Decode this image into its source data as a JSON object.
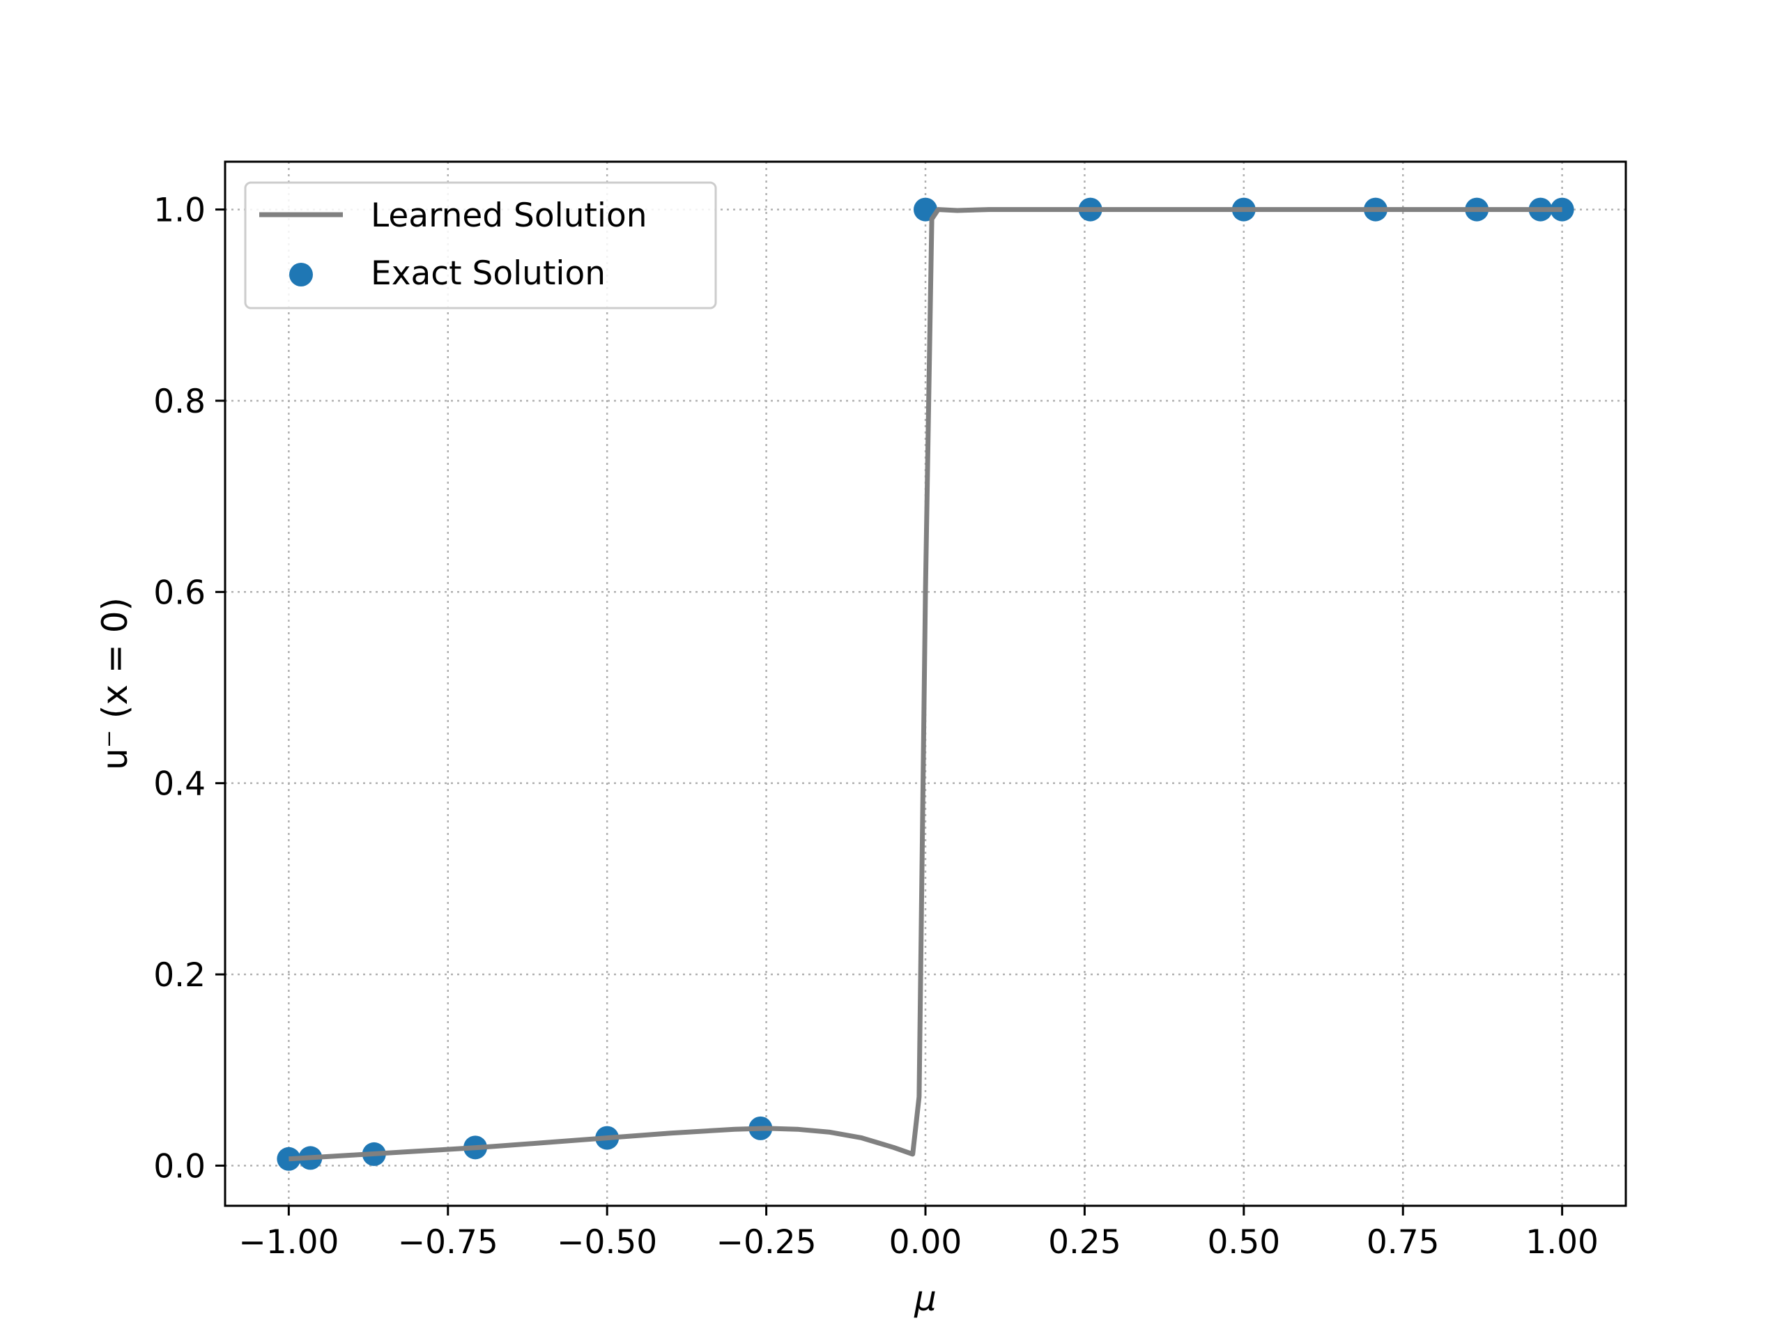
{
  "chart_data": {
    "type": "line",
    "title": "",
    "xlabel": "μ",
    "ylabel": "u⁻ (x = 0)",
    "xlim": [
      -1.1,
      1.1
    ],
    "ylim": [
      -0.042,
      1.05
    ],
    "grid": true,
    "grid_style": "dotted",
    "legend_position": "top-left",
    "x_ticks": [
      -1.0,
      -0.75,
      -0.5,
      -0.25,
      0.0,
      0.25,
      0.5,
      0.75,
      1.0
    ],
    "x_tick_labels": [
      "−1.00",
      "−0.75",
      "−0.50",
      "−0.25",
      "0.00",
      "0.25",
      "0.50",
      "0.75",
      "1.00"
    ],
    "y_ticks": [
      0.0,
      0.2,
      0.4,
      0.6,
      0.8,
      1.0
    ],
    "y_tick_labels": [
      "0.0",
      "0.2",
      "0.4",
      "0.6",
      "0.8",
      "1.0"
    ],
    "series": [
      {
        "name": "Learned Solution",
        "kind": "line",
        "color": "#808080",
        "x": [
          -1.0,
          -0.9,
          -0.8,
          -0.7,
          -0.6,
          -0.5,
          -0.4,
          -0.3,
          -0.25,
          -0.2,
          -0.15,
          -0.1,
          -0.05,
          -0.02,
          -0.01,
          0.0,
          0.01,
          0.02,
          0.05,
          0.1,
          0.25,
          0.5,
          0.75,
          1.0
        ],
        "y": [
          0.007,
          0.011,
          0.015,
          0.019,
          0.024,
          0.029,
          0.034,
          0.038,
          0.039,
          0.038,
          0.035,
          0.029,
          0.019,
          0.012,
          0.072,
          0.6,
          0.99,
          1.0,
          0.999,
          1.0,
          1.0,
          1.0,
          1.0,
          1.0
        ]
      },
      {
        "name": "Exact Solution",
        "kind": "scatter",
        "color": "#1f77b4",
        "x": [
          -1.0,
          -0.966,
          -0.866,
          -0.707,
          -0.5,
          -0.259,
          0.0,
          0.259,
          0.5,
          0.707,
          0.866,
          0.966,
          1.0
        ],
        "y": [
          0.007,
          0.008,
          0.012,
          0.019,
          0.029,
          0.039,
          1.0,
          1.0,
          1.0,
          1.0,
          1.0,
          1.0,
          1.0
        ]
      }
    ]
  }
}
